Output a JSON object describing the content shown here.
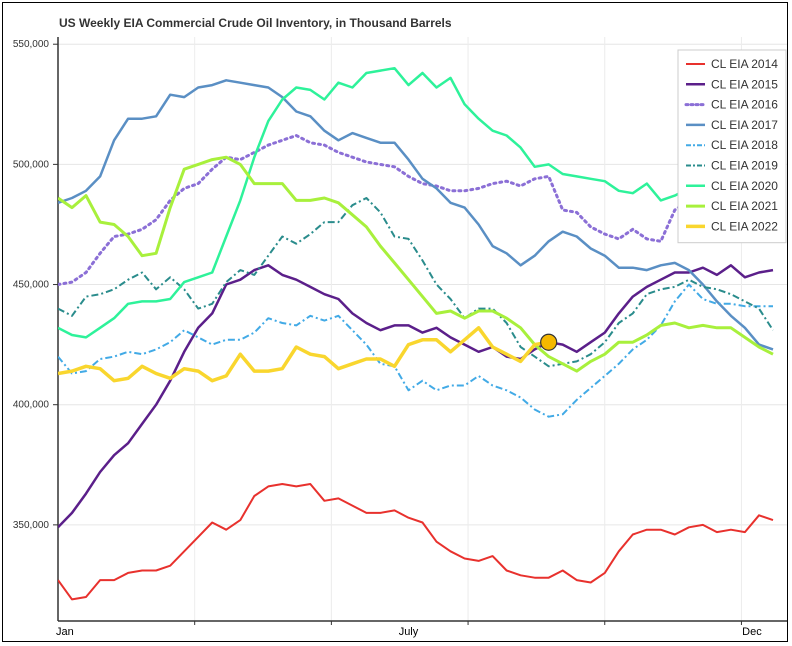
{
  "chart_data": {
    "type": "line",
    "title": "US Weekly EIA Commercial Crude Oil Inventory, in Thousand Barrels",
    "xlabel": "",
    "ylabel": "",
    "x_ticks": [
      "Jan",
      "July",
      "Dec"
    ],
    "y_ticks": [
      "350,000",
      "400,000",
      "450,000",
      "500,000",
      "550,000"
    ],
    "xlim": [
      1,
      53
    ],
    "ylim": [
      310000,
      553000
    ],
    "grid": true,
    "legend_position": "top-right",
    "marker": {
      "series": "CL EIA 2022",
      "week": 36,
      "value": 426000,
      "color": "#f5b800"
    },
    "series": [
      {
        "name": "CL EIA 2014",
        "color": "#e8312d",
        "style": "solid",
        "width": 2,
        "values": [
          327000,
          319000,
          320000,
          327000,
          327000,
          330000,
          331000,
          331000,
          333000,
          339000,
          345000,
          351000,
          348000,
          352000,
          362000,
          366000,
          367000,
          366000,
          367000,
          360000,
          361000,
          358000,
          355000,
          355000,
          356000,
          353000,
          351000,
          343000,
          339000,
          336000,
          335000,
          337000,
          331000,
          329000,
          328000,
          328000,
          331000,
          327000,
          326000,
          330000,
          339000,
          346000,
          348000,
          348000,
          346000,
          349000,
          350000,
          347000,
          348000,
          347000,
          354000,
          352000
        ]
      },
      {
        "name": "CL EIA 2015",
        "color": "#5b1f8a",
        "style": "solid",
        "width": 2.5,
        "values": [
          349000,
          355000,
          363000,
          372000,
          379000,
          384000,
          392000,
          400000,
          410000,
          422000,
          432000,
          438000,
          450000,
          452000,
          456000,
          458000,
          454000,
          452000,
          449000,
          446000,
          444000,
          438000,
          434000,
          431000,
          433000,
          433000,
          430000,
          432000,
          428000,
          425000,
          422000,
          424000,
          420000,
          419000,
          423000,
          426000,
          425000,
          422000,
          426000,
          430000,
          438000,
          445000,
          449000,
          452000,
          455000,
          455000,
          457000,
          454000,
          458000,
          453000,
          455000,
          456000
        ]
      },
      {
        "name": "CL EIA 2016",
        "color": "#8b6fd6",
        "style": "dotted",
        "width": 3,
        "values": [
          450000,
          451000,
          455000,
          463000,
          470000,
          471000,
          473000,
          477000,
          485000,
          490000,
          492000,
          498000,
          503000,
          502000,
          505000,
          508000,
          510000,
          512000,
          509000,
          508000,
          505000,
          503000,
          501000,
          500000,
          499000,
          495000,
          492000,
          491000,
          489000,
          489000,
          490000,
          492000,
          493000,
          491000,
          494000,
          495000,
          481000,
          480000,
          474000,
          471000,
          469000,
          473000,
          469000,
          468000,
          481000,
          485000,
          486000,
          481000,
          482000,
          484000,
          486000,
          488000
        ]
      },
      {
        "name": "CL EIA 2017",
        "color": "#5a8fc4",
        "style": "solid",
        "width": 2.5,
        "values": [
          484000,
          486000,
          489000,
          495000,
          510000,
          519000,
          519000,
          520000,
          529000,
          528000,
          532000,
          533000,
          535000,
          534000,
          533000,
          532000,
          528000,
          522000,
          520000,
          514000,
          510000,
          513000,
          511000,
          509000,
          509000,
          502000,
          494000,
          490000,
          484000,
          482000,
          475000,
          466000,
          463000,
          458000,
          462000,
          468000,
          472000,
          470000,
          465000,
          462000,
          457000,
          457000,
          456000,
          458000,
          459000,
          456000,
          450000,
          443000,
          437000,
          432000,
          425000,
          423000
        ]
      },
      {
        "name": "CL EIA 2018",
        "color": "#42aae6",
        "style": "dashdot",
        "width": 2,
        "values": [
          420000,
          413000,
          414000,
          419000,
          420000,
          422000,
          421000,
          423000,
          426000,
          431000,
          428000,
          425000,
          427000,
          427000,
          430000,
          436000,
          434000,
          433000,
          437000,
          435000,
          437000,
          431000,
          425000,
          417000,
          416000,
          406000,
          410000,
          406000,
          408000,
          408000,
          412000,
          408000,
          406000,
          403000,
          398000,
          395000,
          396000,
          402000,
          407000,
          412000,
          417000,
          423000,
          427000,
          433000,
          443000,
          450000,
          444000,
          442000,
          442000,
          441000,
          441000,
          441000
        ]
      },
      {
        "name": "CL EIA 2019",
        "color": "#2a8c8c",
        "style": "dashdot",
        "width": 2,
        "values": [
          440000,
          437000,
          445000,
          446000,
          448000,
          452000,
          455000,
          448000,
          453000,
          448000,
          440000,
          442000,
          451000,
          456000,
          454000,
          462000,
          470000,
          467000,
          471000,
          476000,
          476000,
          483000,
          486000,
          480000,
          470000,
          469000,
          460000,
          450000,
          444000,
          436000,
          440000,
          440000,
          434000,
          424000,
          420000,
          416000,
          417000,
          418000,
          421000,
          426000,
          434000,
          438000,
          446000,
          448000,
          449000,
          452000,
          449000,
          448000,
          446000,
          443000,
          440000,
          431000
        ]
      },
      {
        "name": "CL EIA 2020",
        "color": "#2ef29a",
        "style": "solid",
        "width": 2.5,
        "values": [
          432000,
          429000,
          428000,
          432000,
          436000,
          442000,
          443000,
          443000,
          444000,
          451000,
          453000,
          455000,
          470000,
          485000,
          503000,
          518000,
          527000,
          532000,
          531000,
          527000,
          534000,
          532000,
          538000,
          539000,
          540000,
          533000,
          538000,
          532000,
          536000,
          525000,
          519000,
          514000,
          512000,
          507000,
          499000,
          500000,
          496000,
          495000,
          494000,
          493000,
          489000,
          488000,
          492000,
          485000,
          487000,
          490000,
          493000,
          494000,
          495000,
          496000,
          496000,
          494000
        ]
      },
      {
        "name": "CL EIA 2021",
        "color": "#a8f03c",
        "style": "solid",
        "width": 3,
        "values": [
          486000,
          482000,
          487000,
          476000,
          475000,
          470000,
          462000,
          463000,
          482000,
          498000,
          500000,
          502000,
          503000,
          500000,
          492000,
          492000,
          492000,
          485000,
          485000,
          486000,
          484000,
          479000,
          474000,
          466000,
          459000,
          452000,
          445000,
          438000,
          439000,
          436000,
          439000,
          439000,
          436000,
          432000,
          425000,
          420000,
          417000,
          414000,
          418000,
          421000,
          426000,
          426000,
          429000,
          433000,
          434000,
          432000,
          433000,
          432000,
          432000,
          428000,
          424000,
          421000
        ]
      },
      {
        "name": "CL EIA 2022",
        "color": "#f9d62e",
        "style": "solid",
        "width": 3.5,
        "values": [
          413000,
          414000,
          416000,
          415000,
          410000,
          411000,
          416000,
          413000,
          411000,
          415000,
          414000,
          410000,
          412000,
          421000,
          414000,
          414000,
          415000,
          424000,
          421000,
          420000,
          415000,
          417000,
          419000,
          419000,
          416000,
          425000,
          427000,
          427000,
          422000,
          427000,
          432000,
          424000,
          421000,
          418000,
          425000,
          426000
        ]
      }
    ]
  }
}
